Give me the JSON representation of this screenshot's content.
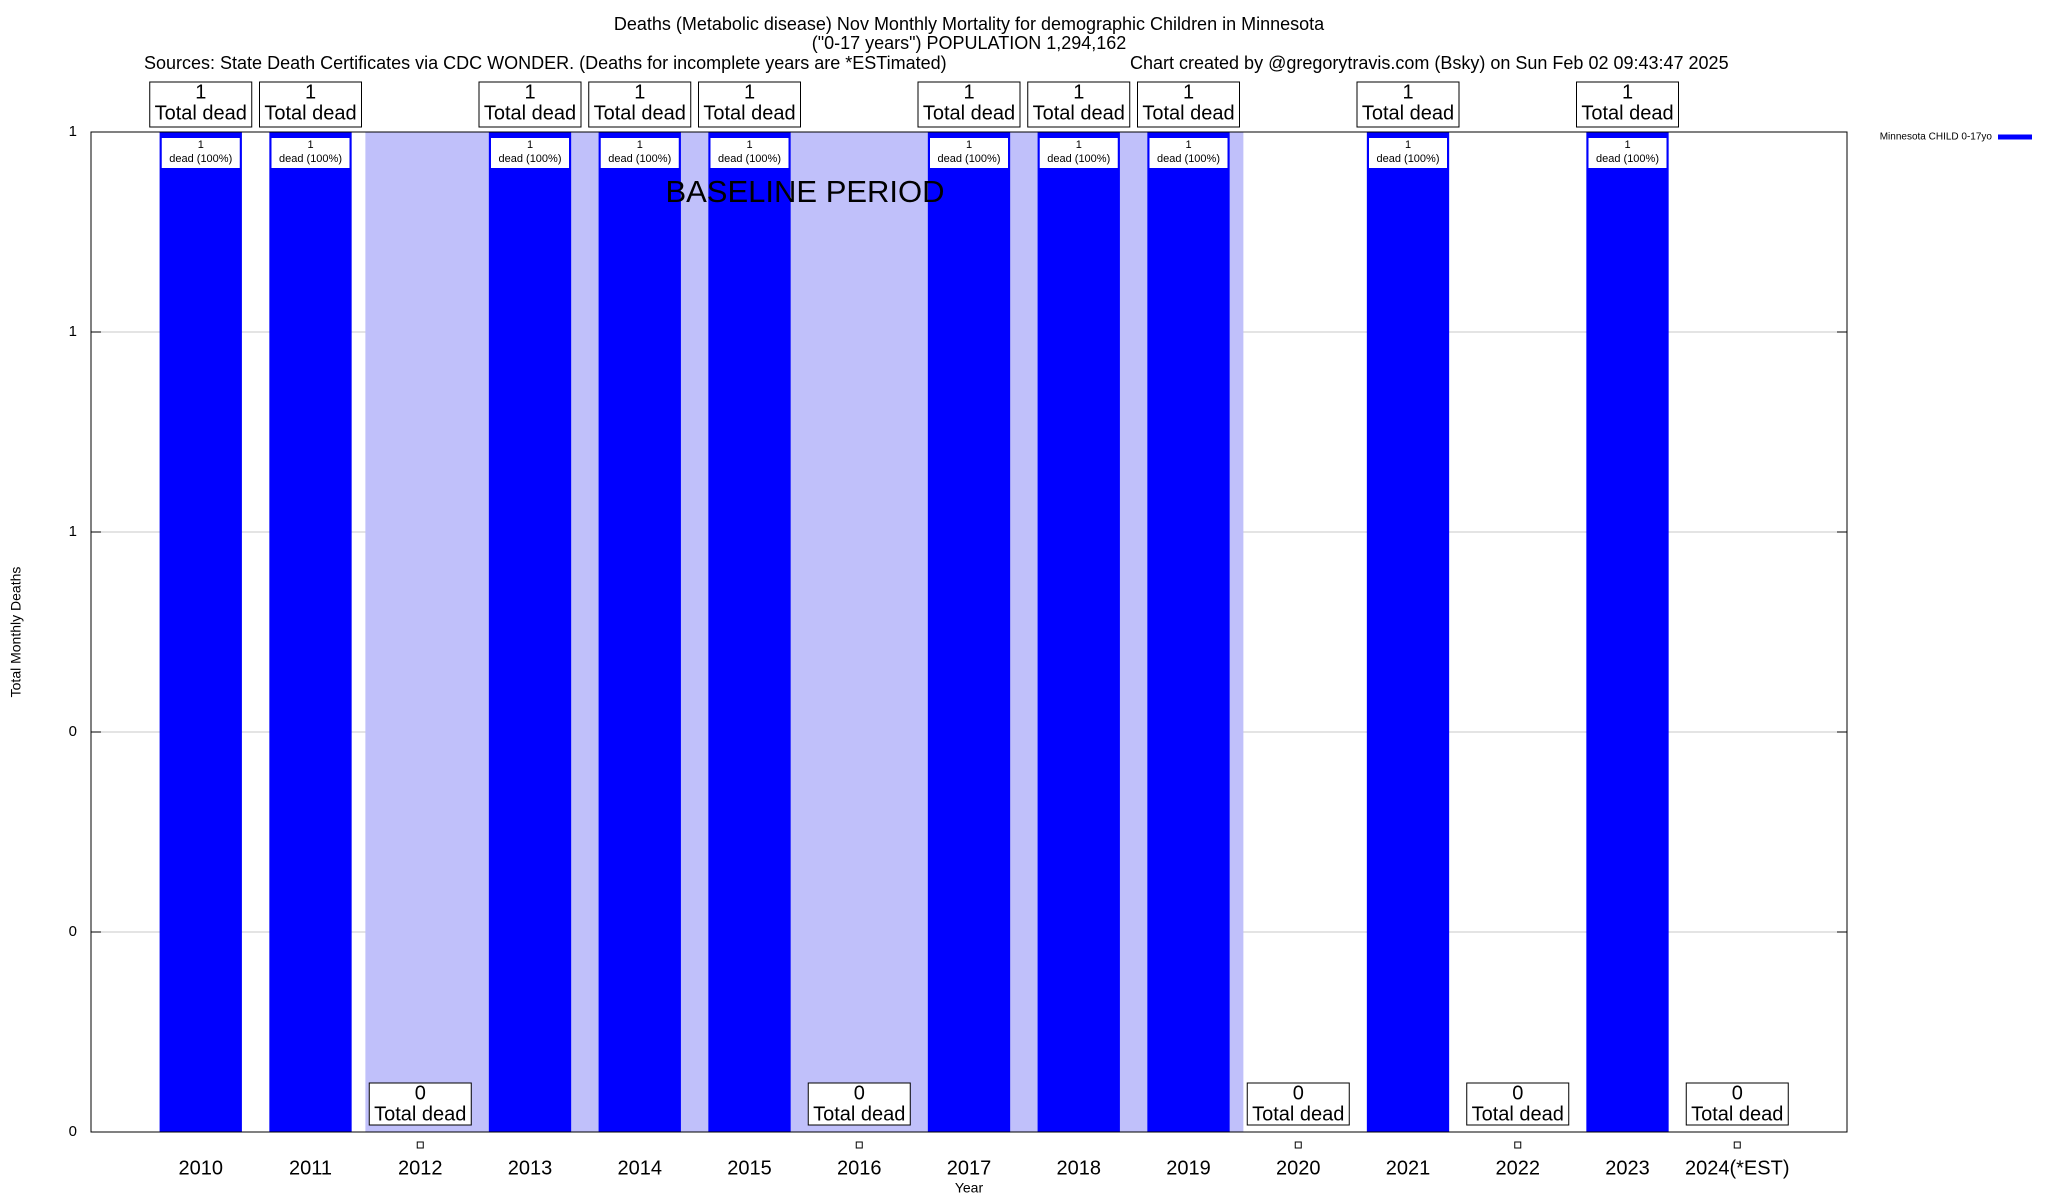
{
  "chart_data": {
    "type": "bar",
    "title": "Deaths (Metabolic disease) Nov Monthly Mortality for demographic Children in Minnesota",
    "subtitle": "(\"0-17 years\") POPULATION 1,294,162",
    "source": "Sources: State Death Certificates via CDC WONDER. (Deaths for incomplete years are *ESTimated)",
    "credit": "Chart created by @gregorytravis.com (Bsky) on Sun Feb 02 09:43:47 2025",
    "x_label": "Year",
    "y_label": "Total Monthly Deaths",
    "categories": [
      "2010",
      "2011",
      "2012",
      "2013",
      "2014",
      "2015",
      "2016",
      "2017",
      "2018",
      "2019",
      "2020",
      "2021",
      "2022",
      "2023",
      "2024(*EST)"
    ],
    "series": [
      {
        "name": "Minnesota CHILD 0-17yo",
        "color": "#0000ff",
        "values": [
          1,
          1,
          0,
          1,
          1,
          1,
          0,
          1,
          1,
          1,
          0,
          1,
          0,
          1,
          0
        ]
      }
    ],
    "total_label": "Total dead",
    "bar_label": "dead (100%)",
    "baseline": {
      "label": "BASELINE PERIOD",
      "start": "2012",
      "end": "2019",
      "color": "#c0c0fa"
    },
    "ylim": [
      0,
      1
    ],
    "yticks": [
      0,
      {
        "value": 0.2,
        "label": "0"
      },
      {
        "value": 0.4,
        "label": "0"
      },
      {
        "value": 0.6,
        "label": "1"
      },
      {
        "value": 0.8,
        "label": "1"
      },
      1
    ],
    "grid": true,
    "legend": "top-right"
  }
}
